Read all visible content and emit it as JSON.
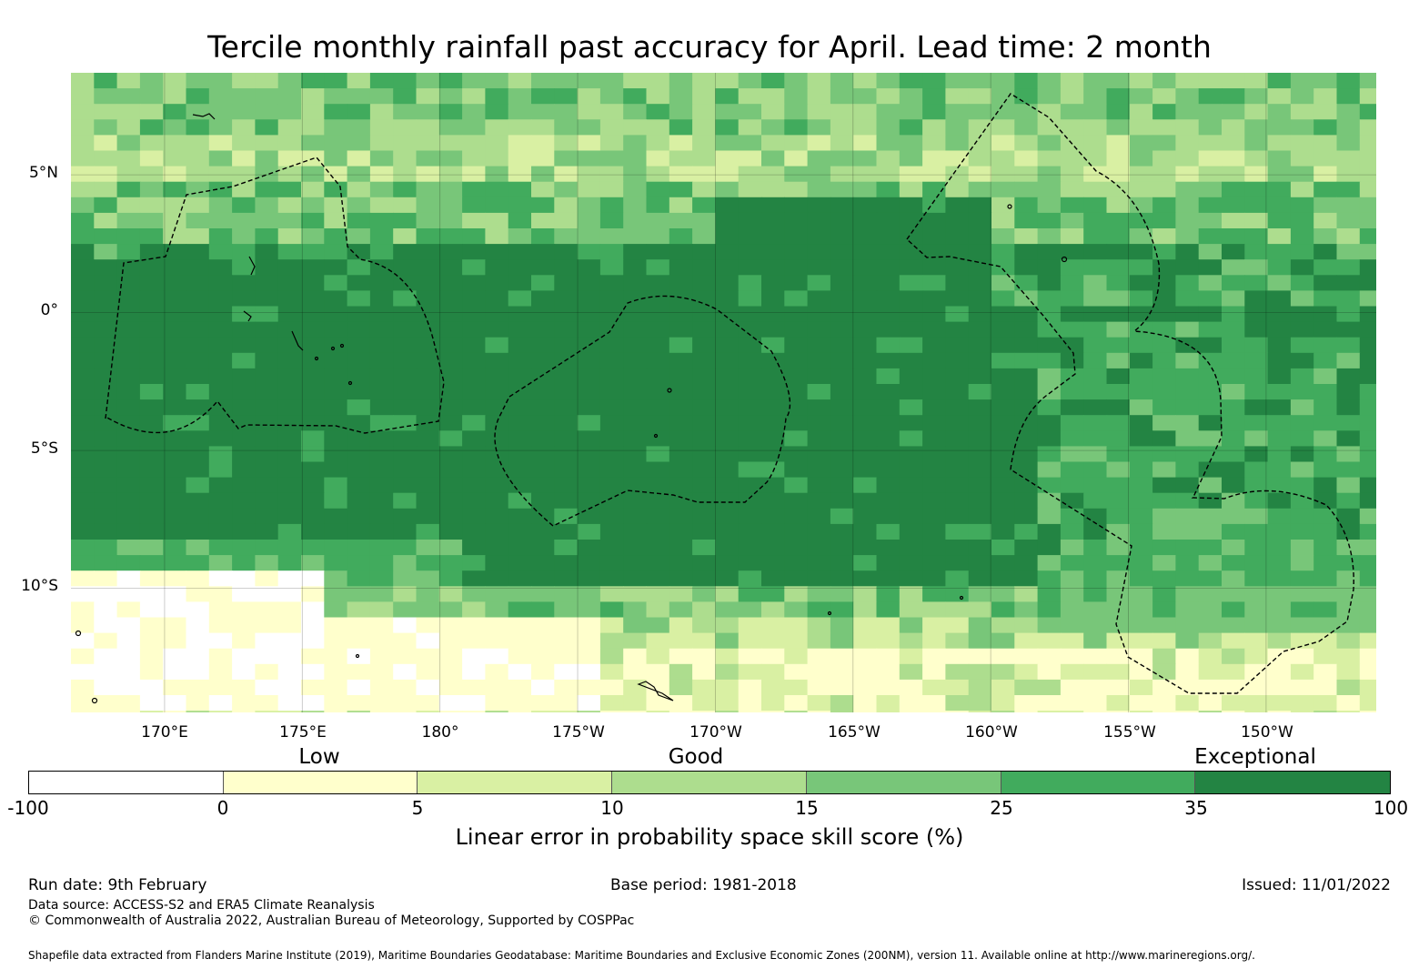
{
  "title": "Tercile monthly rainfall past accuracy for April. Lead time: 2 month",
  "map": {
    "lat_labels": [
      "5°N",
      "0°",
      "5°S",
      "10°S"
    ],
    "lon_labels": [
      "170°E",
      "175°E",
      "180°",
      "175°W",
      "170°W",
      "165°W",
      "160°W",
      "155°W",
      "150°W"
    ],
    "lat_range": [
      -14.5,
      8.7
    ],
    "lon_range": [
      166.6,
      214.0
    ],
    "bins": [
      {
        "from": -100,
        "to": 0,
        "color": "#ffffff"
      },
      {
        "from": 0,
        "to": 5,
        "color": "#ffffcc"
      },
      {
        "from": 5,
        "to": 10,
        "color": "#d9f0a3"
      },
      {
        "from": 10,
        "to": 15,
        "color": "#addd8e"
      },
      {
        "from": 15,
        "to": 25,
        "color": "#78c679"
      },
      {
        "from": 25,
        "to": 35,
        "color": "#41ab5d"
      },
      {
        "from": 35,
        "to": 100,
        "color": "#238443"
      }
    ]
  },
  "colorbar": {
    "categories": [
      "Low",
      "Good",
      "Exceptional"
    ],
    "ticks": [
      "-100",
      "0",
      "5",
      "10",
      "15",
      "25",
      "35",
      "100"
    ],
    "label": "Linear error in probability space skill score (%)"
  },
  "footer": {
    "run_date": "Run date: 9th February",
    "base_period": "Base period: 1981-2018",
    "issued": "Issued: 11/01/2022",
    "data_source": "Data source: ACCESS-S2 and ERA5 Climate Reanalysis",
    "copyright": "© Commonwealth of Australia 2022, Australian Bureau of Meteorology, Supported by COSPPac",
    "shapefile": "Shapefile data extracted from Flanders Marine Institute (2019), Maritime Boundaries Geodatabase: Maritime Boundaries and Exclusive Economic Zones (200NM), version 11. Available online at http://www.marineregions.org/."
  }
}
